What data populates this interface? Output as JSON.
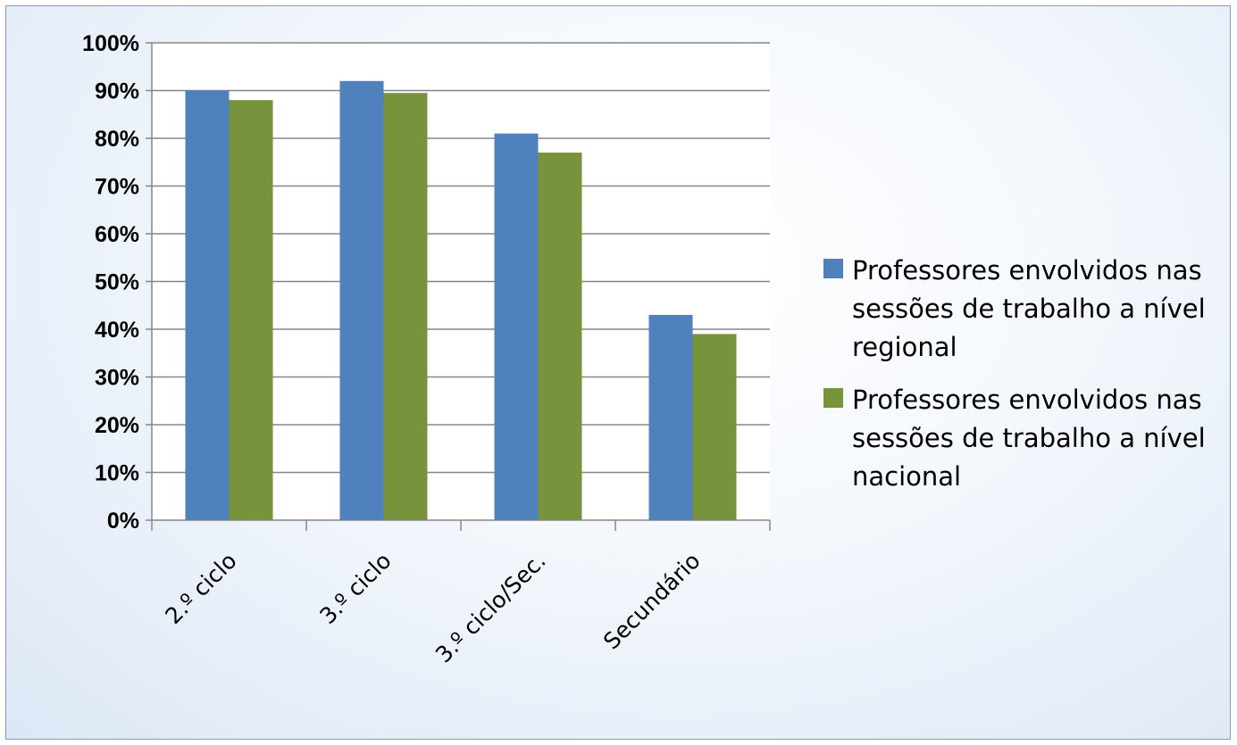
{
  "chart_data": {
    "type": "bar",
    "title": "",
    "xlabel": "",
    "ylabel": "",
    "categories": [
      "2.º ciclo",
      "3.º ciclo",
      "3.º ciclo/Sec.",
      "Secundário"
    ],
    "series": [
      {
        "name": "Professores envolvidos nas sessões de trabalho a nível regional",
        "values": [
          90,
          92,
          81,
          43
        ],
        "color": "#4f81bd"
      },
      {
        "name": "Professores envolvidos nas sessões de trabalho a nível nacional",
        "values": [
          88,
          89.5,
          77,
          39
        ],
        "color": "#77933c"
      }
    ],
    "ylim": [
      0,
      100
    ],
    "yticks": [
      "0%",
      "10%",
      "20%",
      "30%",
      "40%",
      "50%",
      "60%",
      "70%",
      "80%",
      "90%",
      "100%"
    ],
    "grid": true,
    "legend_position": "right"
  }
}
